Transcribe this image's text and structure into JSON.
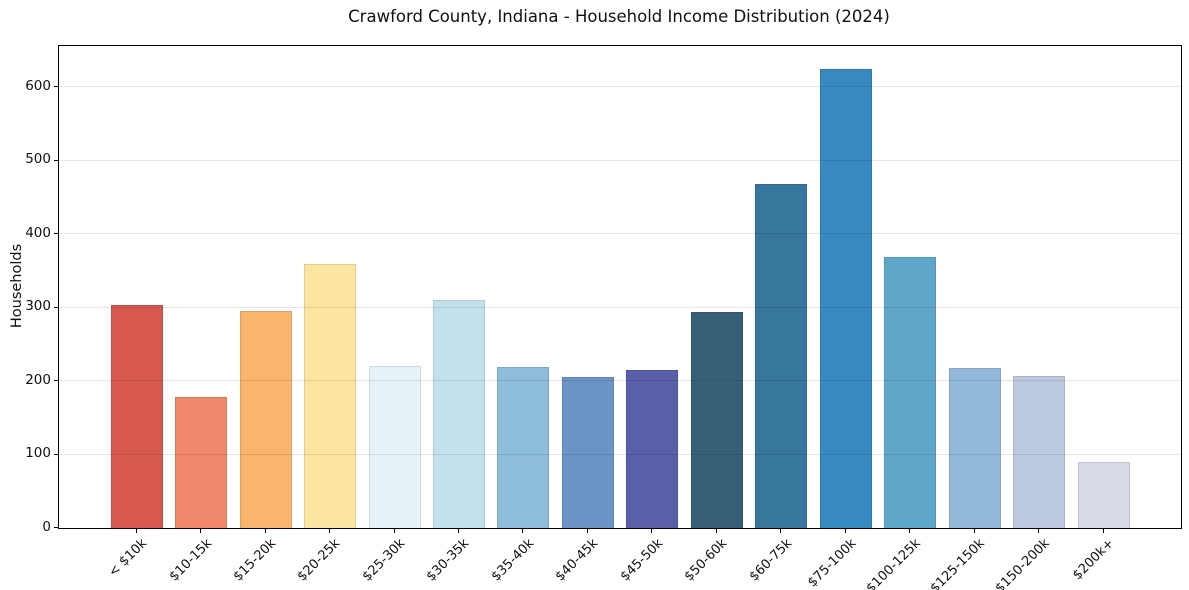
{
  "chart_data": {
    "type": "bar",
    "title": "Crawford County, Indiana - Household Income Distribution (2024)",
    "xlabel": "",
    "ylabel": "Households",
    "categories": [
      "< $10k",
      "$10-15k",
      "$15-20k",
      "$20-25k",
      "$25-30k",
      "$30-35k",
      "$35-40k",
      "$40-45k",
      "$45-50k",
      "$50-60k",
      "$60-75k",
      "$75-100k",
      "$100-125k",
      "$125-150k",
      "$150-200k",
      "$200k+"
    ],
    "values": [
      303,
      178,
      296,
      360,
      220,
      310,
      219,
      206,
      215,
      294,
      468,
      625,
      369,
      218,
      207,
      90
    ],
    "bar_colors": [
      "#d7584f",
      "#f1886b",
      "#f9b46e",
      "#fce4a1",
      "#e7f2f8",
      "#c3e0ed",
      "#8ebcdb",
      "#6b93c5",
      "#5b5fa9",
      "#375f78",
      "#37779e",
      "#368abf",
      "#5ea7cb",
      "#93b9da",
      "#bdc9df",
      "#d8dce8"
    ],
    "yticks": [
      0,
      100,
      200,
      300,
      400,
      500,
      600
    ],
    "ylim": [
      0,
      656
    ],
    "xtick_rotation_deg": 45,
    "grid": "horizontal",
    "gridline_color": "#e5e5e5",
    "spine_color": "#000000",
    "text_color": "#111111",
    "background": "#ffffff",
    "legend": false
  }
}
